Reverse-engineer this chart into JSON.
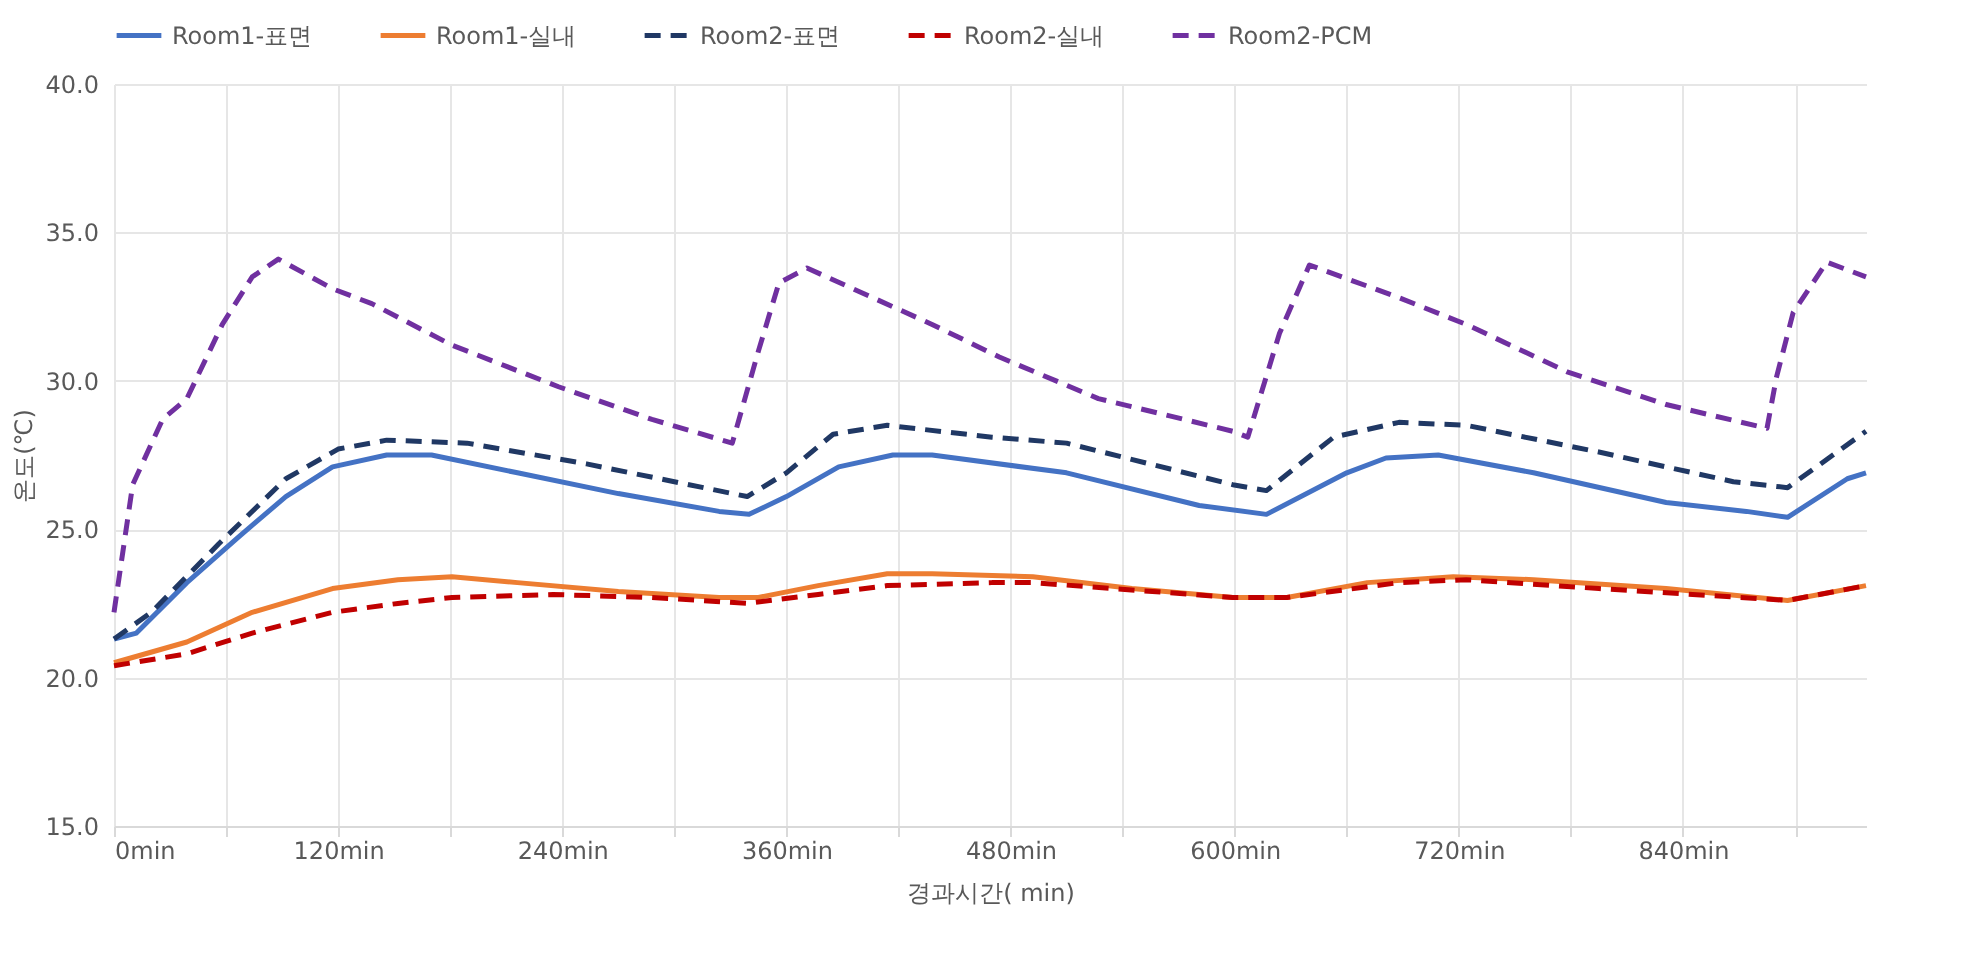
{
  "chart_data": {
    "type": "line",
    "xlabel": "경과시간( min)",
    "ylabel": "온도(℃)",
    "xlim": [
      0,
      938
    ],
    "xticks": [
      {
        "value": 0,
        "label": "0min"
      },
      {
        "value": 60,
        "label": null
      },
      {
        "value": 120,
        "label": "120min"
      },
      {
        "value": 180,
        "label": null
      },
      {
        "value": 240,
        "label": "240min"
      },
      {
        "value": 300,
        "label": null
      },
      {
        "value": 360,
        "label": "360min"
      },
      {
        "value": 420,
        "label": null
      },
      {
        "value": 480,
        "label": "480min"
      },
      {
        "value": 540,
        "label": null
      },
      {
        "value": 600,
        "label": "600min"
      },
      {
        "value": 660,
        "label": null
      },
      {
        "value": 720,
        "label": "720min"
      },
      {
        "value": 780,
        "label": null
      },
      {
        "value": 840,
        "label": "840min"
      },
      {
        "value": 900,
        "label": null
      }
    ],
    "ylim": [
      15,
      40
    ],
    "yticks": [
      {
        "value": 15,
        "label": "15.0"
      },
      {
        "value": 20,
        "label": "20.0"
      },
      {
        "value": 25,
        "label": "25.0"
      },
      {
        "value": 30,
        "label": "30.0"
      },
      {
        "value": 35,
        "label": "35.0"
      },
      {
        "value": 40,
        "label": "40.0"
      }
    ],
    "grid": true,
    "legend": "top",
    "marker": "none",
    "series": [
      {
        "name": "Room1-표면",
        "color": "#4472c4",
        "line_style": "solid",
        "x": [
          0,
          12,
          39,
          66,
          92,
          117,
          146,
          170,
          216,
          270,
          324,
          340,
          360,
          388,
          417,
          438,
          510,
          581,
          617,
          660,
          681,
          709,
          760,
          831,
          874,
          896,
          928,
          938
        ],
        "values": [
          21.3,
          21.5,
          23.2,
          24.7,
          26.1,
          27.1,
          27.5,
          27.5,
          26.9,
          26.2,
          25.6,
          25.5,
          26.1,
          27.1,
          27.5,
          27.5,
          26.9,
          25.8,
          25.5,
          26.9,
          27.4,
          27.5,
          26.9,
          25.9,
          25.6,
          25.4,
          26.7,
          26.9
        ]
      },
      {
        "name": "Room1-실내",
        "color": "#ed7d31",
        "line_style": "solid",
        "x": [
          0,
          39,
          74,
          117,
          152,
          181,
          216,
          270,
          324,
          345,
          377,
          414,
          438,
          492,
          545,
          599,
          628,
          671,
          717,
          760,
          831,
          896,
          938
        ],
        "values": [
          20.5,
          21.2,
          22.2,
          23.0,
          23.3,
          23.4,
          23.2,
          22.9,
          22.7,
          22.7,
          23.1,
          23.5,
          23.5,
          23.4,
          23.0,
          22.7,
          22.7,
          23.2,
          23.4,
          23.3,
          23.0,
          22.6,
          23.1
        ]
      },
      {
        "name": "Room2-표면",
        "color": "#203864",
        "line_style": "dashed",
        "x": [
          0,
          20,
          56,
          92,
          120,
          146,
          189,
          253,
          339,
          360,
          385,
          414,
          470,
          510,
          599,
          617,
          653,
          688,
          724,
          795,
          867,
          896,
          938
        ],
        "values": [
          21.3,
          22.2,
          24.5,
          26.7,
          27.7,
          28.0,
          27.9,
          27.2,
          26.1,
          26.9,
          28.2,
          28.5,
          28.1,
          27.9,
          26.5,
          26.3,
          28.1,
          28.6,
          28.5,
          27.6,
          26.6,
          26.4,
          28.3
        ]
      },
      {
        "name": "Room2-실내",
        "color": "#c00000",
        "line_style": "dashed",
        "x": [
          0,
          39,
          74,
          117,
          152,
          181,
          235,
          288,
          339,
          377,
          414,
          470,
          492,
          599,
          628,
          688,
          724,
          795,
          896,
          938
        ],
        "values": [
          20.4,
          20.8,
          21.5,
          22.2,
          22.5,
          22.7,
          22.8,
          22.7,
          22.5,
          22.8,
          23.1,
          23.2,
          23.2,
          22.7,
          22.7,
          23.2,
          23.3,
          23.0,
          22.6,
          23.1
        ]
      },
      {
        "name": "Room2-PCM",
        "color": "#7030a0",
        "line_style": "dashed",
        "x": [
          0,
          10,
          26,
          39,
          58,
          74,
          88,
          117,
          138,
          181,
          238,
          288,
          331,
          345,
          356,
          371,
          438,
          474,
          527,
          599,
          607,
          624,
          640,
          688,
          724,
          778,
          831,
          885,
          890,
          899,
          917,
          938
        ],
        "values": [
          22.2,
          26.5,
          28.7,
          29.4,
          31.9,
          33.5,
          34.1,
          33.1,
          32.6,
          31.2,
          29.8,
          28.7,
          27.9,
          31.0,
          33.3,
          33.8,
          31.9,
          30.8,
          29.4,
          28.3,
          28.1,
          31.6,
          33.9,
          32.8,
          31.9,
          30.3,
          29.2,
          28.4,
          30.1,
          32.3,
          34.0,
          33.5
        ]
      }
    ]
  }
}
